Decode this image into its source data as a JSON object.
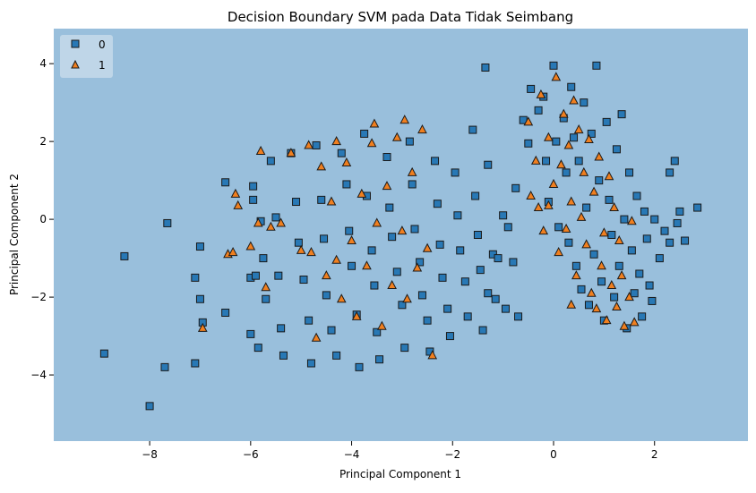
{
  "chart_data": {
    "type": "scatter",
    "title": "Decision Boundary SVM pada Data Tidak Seimbang",
    "xlabel": "Principal Component 1",
    "ylabel": "Principal Component 2",
    "xlim": [
      -9.9,
      3.85
    ],
    "ylim": [
      -5.7,
      4.9
    ],
    "x_ticks": [
      -8,
      -6,
      -4,
      -2,
      0,
      2
    ],
    "y_ticks": [
      -4,
      -2,
      0,
      2,
      4
    ],
    "grid": false,
    "legend_position": "top-left",
    "background_region_color": "#99bfdc",
    "series": [
      {
        "name": "0",
        "marker": "square",
        "color": "#2878b5",
        "points": [
          [
            -8.9,
            -3.45
          ],
          [
            -8.5,
            -0.95
          ],
          [
            -8.0,
            -4.8
          ],
          [
            -7.7,
            -3.8
          ],
          [
            -7.65,
            -0.1
          ],
          [
            -7.1,
            -1.5
          ],
          [
            -7.1,
            -3.7
          ],
          [
            -7.0,
            -0.7
          ],
          [
            -7.0,
            -2.05
          ],
          [
            -6.95,
            -2.65
          ],
          [
            -6.5,
            0.95
          ],
          [
            -6.5,
            -2.4
          ],
          [
            -6.0,
            -1.5
          ],
          [
            -6.0,
            -2.95
          ],
          [
            -5.95,
            0.85
          ],
          [
            -5.95,
            0.5
          ],
          [
            -5.9,
            -1.45
          ],
          [
            -5.85,
            -3.3
          ],
          [
            -5.8,
            -0.05
          ],
          [
            -5.75,
            -1.0
          ],
          [
            -5.7,
            -2.05
          ],
          [
            -5.6,
            1.5
          ],
          [
            -5.5,
            0.05
          ],
          [
            -5.45,
            -1.45
          ],
          [
            -5.4,
            -2.8
          ],
          [
            -5.35,
            -3.5
          ],
          [
            -5.2,
            1.7
          ],
          [
            -5.1,
            0.45
          ],
          [
            -5.05,
            -0.6
          ],
          [
            -4.95,
            -1.55
          ],
          [
            -4.85,
            -2.6
          ],
          [
            -4.8,
            -3.7
          ],
          [
            -4.7,
            1.9
          ],
          [
            -4.6,
            0.5
          ],
          [
            -4.55,
            -0.5
          ],
          [
            -4.5,
            -1.95
          ],
          [
            -4.4,
            -2.85
          ],
          [
            -4.3,
            -3.5
          ],
          [
            -4.2,
            1.7
          ],
          [
            -4.1,
            0.9
          ],
          [
            -4.05,
            -0.3
          ],
          [
            -4.0,
            -1.2
          ],
          [
            -3.9,
            -2.45
          ],
          [
            -3.85,
            -3.8
          ],
          [
            -3.75,
            2.2
          ],
          [
            -3.7,
            0.6
          ],
          [
            -3.6,
            -0.8
          ],
          [
            -3.55,
            -1.7
          ],
          [
            -3.5,
            -2.9
          ],
          [
            -3.45,
            -3.6
          ],
          [
            -3.3,
            1.6
          ],
          [
            -3.25,
            0.3
          ],
          [
            -3.2,
            -0.45
          ],
          [
            -3.1,
            -1.35
          ],
          [
            -3.0,
            -2.2
          ],
          [
            -2.95,
            -3.3
          ],
          [
            -2.85,
            2.0
          ],
          [
            -2.8,
            0.9
          ],
          [
            -2.75,
            -0.25
          ],
          [
            -2.65,
            -1.1
          ],
          [
            -2.6,
            -1.95
          ],
          [
            -2.5,
            -2.6
          ],
          [
            -2.45,
            -3.4
          ],
          [
            -2.35,
            1.5
          ],
          [
            -2.3,
            0.4
          ],
          [
            -2.25,
            -0.65
          ],
          [
            -2.2,
            -1.5
          ],
          [
            -2.1,
            -2.3
          ],
          [
            -2.05,
            -3.0
          ],
          [
            -1.95,
            1.2
          ],
          [
            -1.9,
            0.1
          ],
          [
            -1.85,
            -0.8
          ],
          [
            -1.75,
            -1.6
          ],
          [
            -1.7,
            -2.5
          ],
          [
            -1.6,
            2.3
          ],
          [
            -1.55,
            0.6
          ],
          [
            -1.5,
            -0.4
          ],
          [
            -1.45,
            -1.3
          ],
          [
            -1.4,
            -2.85
          ],
          [
            -1.35,
            3.9
          ],
          [
            -1.3,
            1.4
          ],
          [
            -1.2,
            -0.9
          ],
          [
            -1.1,
            -1.0
          ],
          [
            -1.0,
            0.1
          ],
          [
            -0.95,
            -2.3
          ],
          [
            -0.9,
            -0.2
          ],
          [
            -0.8,
            -1.1
          ],
          [
            -0.75,
            0.8
          ],
          [
            -0.7,
            -2.5
          ],
          [
            -1.15,
            -2.05
          ],
          [
            -1.3,
            -1.9
          ],
          [
            -0.6,
            2.55
          ],
          [
            -0.5,
            1.95
          ],
          [
            -0.45,
            3.35
          ],
          [
            -0.3,
            2.8
          ],
          [
            -0.2,
            3.15
          ],
          [
            -0.15,
            1.5
          ],
          [
            -0.1,
            0.45
          ],
          [
            0.0,
            3.95
          ],
          [
            0.05,
            2.0
          ],
          [
            0.1,
            -0.2
          ],
          [
            0.2,
            2.6
          ],
          [
            0.25,
            1.2
          ],
          [
            0.3,
            -0.6
          ],
          [
            0.35,
            3.4
          ],
          [
            0.4,
            2.1
          ],
          [
            0.45,
            -1.2
          ],
          [
            0.5,
            1.5
          ],
          [
            0.55,
            -1.8
          ],
          [
            0.6,
            3.0
          ],
          [
            0.65,
            0.3
          ],
          [
            0.7,
            -2.2
          ],
          [
            0.75,
            2.2
          ],
          [
            0.8,
            -0.9
          ],
          [
            0.85,
            3.95
          ],
          [
            0.9,
            1.0
          ],
          [
            0.95,
            -1.6
          ],
          [
            1.0,
            -2.6
          ],
          [
            1.05,
            2.5
          ],
          [
            1.1,
            0.5
          ],
          [
            1.15,
            -0.4
          ],
          [
            1.2,
            -2.0
          ],
          [
            1.25,
            1.8
          ],
          [
            1.3,
            -1.2
          ],
          [
            1.35,
            2.7
          ],
          [
            1.4,
            0.0
          ],
          [
            1.45,
            -2.8
          ],
          [
            1.5,
            1.2
          ],
          [
            1.55,
            -0.8
          ],
          [
            1.6,
            -1.9
          ],
          [
            1.65,
            0.6
          ],
          [
            1.7,
            -1.4
          ],
          [
            1.75,
            -2.5
          ],
          [
            1.8,
            0.2
          ],
          [
            1.85,
            -0.5
          ],
          [
            1.9,
            -1.7
          ],
          [
            1.95,
            -2.1
          ],
          [
            2.0,
            0.0
          ],
          [
            2.1,
            -1.0
          ],
          [
            2.2,
            -0.3
          ],
          [
            2.3,
            -0.6
          ],
          [
            2.4,
            1.5
          ],
          [
            2.45,
            -0.1
          ],
          [
            2.5,
            0.2
          ],
          [
            2.85,
            0.3
          ],
          [
            2.6,
            -0.55
          ],
          [
            2.3,
            1.2
          ]
        ]
      },
      {
        "name": "1",
        "marker": "triangle",
        "color": "#f07f1f",
        "points": [
          [
            -6.95,
            -2.8
          ],
          [
            -6.45,
            -0.9
          ],
          [
            -6.35,
            -0.85
          ],
          [
            -6.3,
            0.65
          ],
          [
            -6.25,
            0.35
          ],
          [
            -6.0,
            -0.7
          ],
          [
            -5.85,
            -0.1
          ],
          [
            -5.8,
            1.75
          ],
          [
            -5.7,
            -1.75
          ],
          [
            -5.6,
            -0.2
          ],
          [
            -5.4,
            -0.1
          ],
          [
            -5.2,
            1.7
          ],
          [
            -5.0,
            -0.8
          ],
          [
            -4.85,
            1.9
          ],
          [
            -4.8,
            -0.85
          ],
          [
            -4.7,
            -3.05
          ],
          [
            -4.6,
            1.35
          ],
          [
            -4.5,
            -1.45
          ],
          [
            -4.4,
            0.45
          ],
          [
            -4.3,
            -1.05
          ],
          [
            -4.2,
            -2.05
          ],
          [
            -4.1,
            1.45
          ],
          [
            -4.0,
            -0.55
          ],
          [
            -3.9,
            -2.5
          ],
          [
            -3.8,
            0.65
          ],
          [
            -3.7,
            -1.2
          ],
          [
            -3.6,
            1.95
          ],
          [
            -3.5,
            -0.1
          ],
          [
            -3.4,
            -2.75
          ],
          [
            -3.3,
            0.85
          ],
          [
            -3.2,
            -1.7
          ],
          [
            -3.1,
            2.1
          ],
          [
            -3.0,
            -0.3
          ],
          [
            -2.9,
            -2.05
          ],
          [
            -2.8,
            1.2
          ],
          [
            -2.7,
            -1.25
          ],
          [
            -2.6,
            2.3
          ],
          [
            -2.5,
            -0.75
          ],
          [
            -2.4,
            -3.5
          ],
          [
            -2.95,
            2.55
          ],
          [
            -3.55,
            2.45
          ],
          [
            -4.3,
            2.0
          ],
          [
            -0.5,
            2.5
          ],
          [
            -0.45,
            0.6
          ],
          [
            -0.35,
            1.5
          ],
          [
            -0.25,
            3.2
          ],
          [
            -0.2,
            -0.3
          ],
          [
            -0.1,
            2.1
          ],
          [
            0.0,
            0.9
          ],
          [
            0.05,
            3.65
          ],
          [
            0.1,
            -0.85
          ],
          [
            0.15,
            1.4
          ],
          [
            0.2,
            2.7
          ],
          [
            0.25,
            -0.25
          ],
          [
            0.3,
            1.9
          ],
          [
            0.35,
            0.45
          ],
          [
            0.4,
            3.05
          ],
          [
            0.45,
            -1.45
          ],
          [
            0.5,
            2.3
          ],
          [
            0.55,
            0.05
          ],
          [
            0.6,
            1.2
          ],
          [
            0.65,
            -0.65
          ],
          [
            0.7,
            2.05
          ],
          [
            0.75,
            -1.9
          ],
          [
            0.8,
            0.7
          ],
          [
            0.85,
            -2.3
          ],
          [
            0.9,
            1.6
          ],
          [
            0.95,
            -1.2
          ],
          [
            1.0,
            -0.35
          ],
          [
            1.05,
            -2.6
          ],
          [
            1.1,
            1.1
          ],
          [
            1.15,
            -1.7
          ],
          [
            1.2,
            0.3
          ],
          [
            1.25,
            -2.25
          ],
          [
            1.3,
            -0.55
          ],
          [
            1.35,
            -1.45
          ],
          [
            1.4,
            -2.75
          ],
          [
            1.5,
            -2.0
          ],
          [
            1.55,
            -0.05
          ],
          [
            1.6,
            -2.65
          ],
          [
            0.35,
            -2.2
          ],
          [
            -0.1,
            0.35
          ],
          [
            -0.3,
            0.3
          ]
        ]
      }
    ]
  }
}
